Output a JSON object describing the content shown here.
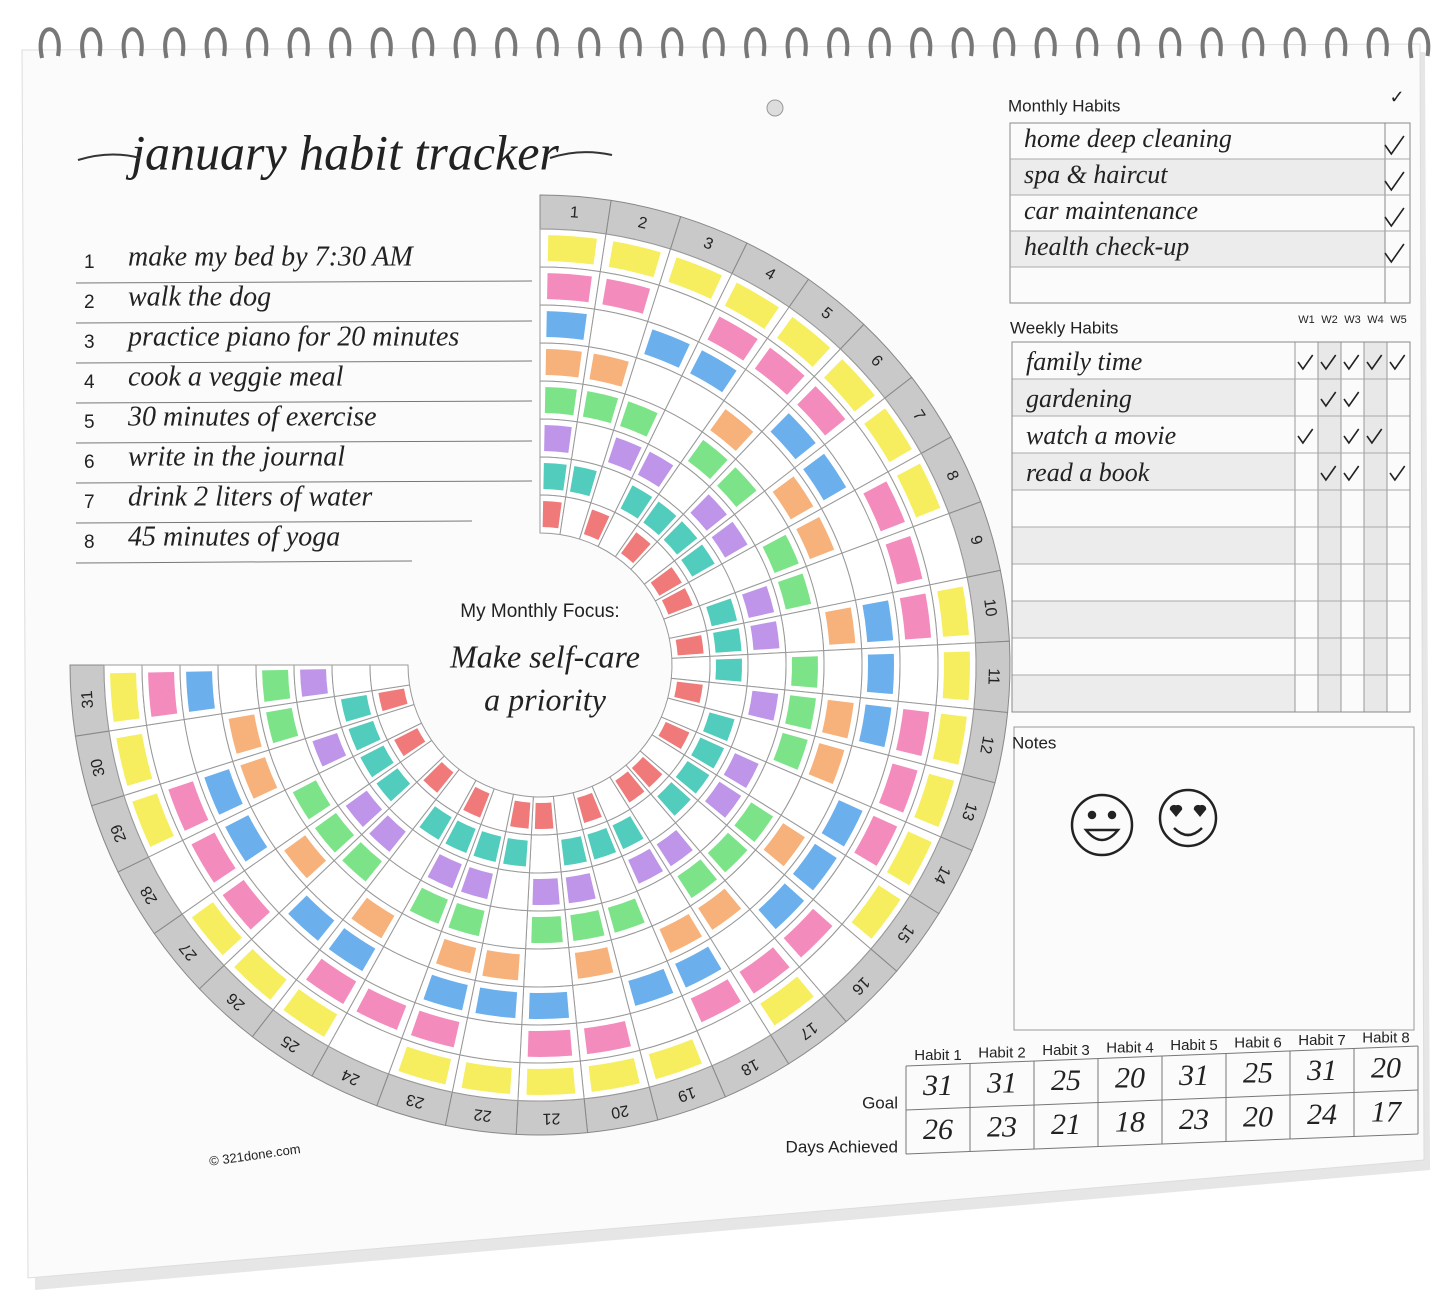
{
  "title": "january habit tracker",
  "habits": [
    {
      "number": 1,
      "name": "make my bed by 7:30 AM",
      "color": "#f5ec4e",
      "done": [
        1,
        2,
        3,
        4,
        5,
        6,
        7,
        8,
        10,
        11,
        12,
        13,
        14,
        15,
        17,
        19,
        20,
        21,
        22,
        23,
        25,
        26,
        27,
        29,
        30,
        31
      ]
    },
    {
      "number": 2,
      "name": "walk the dog",
      "color": "#f27fb6",
      "done": [
        1,
        2,
        4,
        5,
        6,
        8,
        9,
        10,
        12,
        13,
        14,
        16,
        17,
        18,
        20,
        21,
        23,
        24,
        25,
        27,
        28,
        29,
        31
      ]
    },
    {
      "number": 3,
      "name": "practice piano for 20 minutes",
      "color": "#5ba6ea",
      "done": [
        1,
        3,
        4,
        6,
        7,
        10,
        11,
        12,
        14,
        15,
        16,
        18,
        19,
        21,
        22,
        23,
        25,
        26,
        28,
        29,
        31
      ]
    },
    {
      "number": 4,
      "name": "cook a veggie meal",
      "color": "#f6a86c",
      "done": [
        1,
        2,
        5,
        7,
        8,
        10,
        12,
        13,
        15,
        17,
        18,
        20,
        22,
        23,
        25,
        27,
        29,
        30
      ]
    },
    {
      "number": 5,
      "name": "30 minutes of exercise",
      "color": "#6fe07c",
      "done": [
        1,
        2,
        3,
        5,
        6,
        8,
        9,
        11,
        12,
        13,
        15,
        16,
        17,
        19,
        20,
        21,
        23,
        24,
        26,
        27,
        28,
        30,
        31
      ]
    },
    {
      "number": 6,
      "name": "write in the journal",
      "color": "#b78ae6",
      "done": [
        1,
        3,
        4,
        6,
        7,
        9,
        10,
        12,
        14,
        15,
        17,
        18,
        20,
        21,
        23,
        24,
        26,
        27,
        29,
        31
      ]
    },
    {
      "number": 7,
      "name": "drink 2 liters of water",
      "color": "#3ec6b6",
      "done": [
        1,
        2,
        4,
        5,
        6,
        7,
        9,
        10,
        11,
        13,
        14,
        15,
        16,
        18,
        19,
        20,
        22,
        23,
        24,
        25,
        27,
        28,
        29,
        30
      ]
    },
    {
      "number": 8,
      "name": "45 minutes of yoga",
      "color": "#ee6c6c",
      "done": [
        1,
        3,
        5,
        7,
        8,
        10,
        12,
        14,
        16,
        17,
        19,
        21,
        22,
        24,
        26,
        28,
        30
      ]
    }
  ],
  "days": [
    1,
    2,
    3,
    4,
    5,
    6,
    7,
    8,
    9,
    10,
    11,
    12,
    13,
    14,
    15,
    16,
    17,
    18,
    19,
    20,
    21,
    22,
    23,
    24,
    25,
    26,
    27,
    28,
    29,
    30,
    31
  ],
  "focus": {
    "label": "My Monthly Focus:",
    "lines": [
      "Make self-care",
      "a priority"
    ]
  },
  "monthly": {
    "title": "Monthly Habits",
    "check_header": "✓",
    "rows": [
      {
        "name": "home deep cleaning",
        "checked": true
      },
      {
        "name": "spa & haircut",
        "checked": true
      },
      {
        "name": "car maintenance",
        "checked": true
      },
      {
        "name": "health check-up",
        "checked": true
      }
    ]
  },
  "weekly": {
    "title": "Weekly Habits",
    "weeks": [
      "W1",
      "W2",
      "W3",
      "W4",
      "W5"
    ],
    "rows": [
      {
        "name": "family time",
        "checked": [
          true,
          true,
          true,
          true,
          true
        ]
      },
      {
        "name": "gardening",
        "checked": [
          false,
          true,
          true,
          false,
          false
        ]
      },
      {
        "name": "watch a movie",
        "checked": [
          true,
          false,
          true,
          true,
          false
        ]
      },
      {
        "name": "read a book",
        "checked": [
          false,
          true,
          true,
          false,
          true
        ]
      }
    ]
  },
  "notes": {
    "title": "Notes"
  },
  "goals": {
    "headers": [
      "Habit 1",
      "Habit 2",
      "Habit 3",
      "Habit 4",
      "Habit 5",
      "Habit 6",
      "Habit 7",
      "Habit 8"
    ],
    "goal_label": "Goal",
    "goal": [
      31,
      31,
      25,
      20,
      31,
      25,
      31,
      20
    ],
    "achieved_label": "Days Achieved",
    "achieved": [
      26,
      23,
      21,
      18,
      23,
      20,
      24,
      17
    ]
  },
  "copyright": "© 321done.com"
}
